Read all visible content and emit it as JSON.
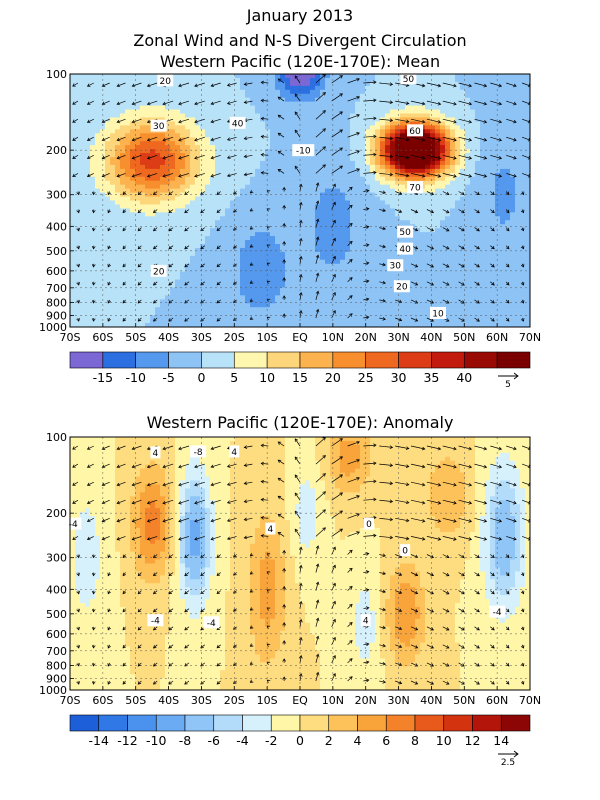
{
  "figure": {
    "title_line1": "January 2013",
    "title_line2": "Zonal Wind and N-S Divergent Circulation"
  },
  "colors": {
    "mean_scale": [
      "#7b68d4",
      "#2c6fe0",
      "#5599ee",
      "#8ec3f5",
      "#b8e2f8",
      "#fff7b0",
      "#fdd57a",
      "#fcb24e",
      "#f88f2e",
      "#ef6820",
      "#dc3d16",
      "#c21a0c",
      "#9a0a04",
      "#7a0000"
    ],
    "anom_scale": [
      "#1c5fd8",
      "#2f78e6",
      "#4b92ee",
      "#6aabf3",
      "#8fc6f7",
      "#b3dcfa",
      "#d6f1fc",
      "#fff6a8",
      "#fedd80",
      "#fdc25a",
      "#f9a43b",
      "#f4822a",
      "#e85a1c",
      "#d4330f",
      "#b4150a",
      "#8c0606"
    ]
  },
  "chart_data": [
    {
      "type": "contour",
      "title": "Western Pacific (120E-170E): Mean",
      "x": {
        "tick_labels": [
          "70S",
          "60S",
          "50S",
          "40S",
          "30S",
          "20S",
          "10S",
          "EQ",
          "10N",
          "20N",
          "30N",
          "40N",
          "50N",
          "60N",
          "70N"
        ],
        "range": [
          -70,
          70
        ]
      },
      "y": {
        "tick_labels": [
          "100",
          "200",
          "300",
          "400",
          "500",
          "600",
          "700",
          "800",
          "900",
          "1000"
        ],
        "tick_values": [
          100,
          200,
          300,
          400,
          500,
          600,
          700,
          800,
          900,
          1000
        ],
        "range": [
          100,
          1000
        ],
        "scale": "log-pressure"
      },
      "colorbar": {
        "levels": [
          -20,
          -15,
          -10,
          -5,
          0,
          5,
          10,
          15,
          20,
          25,
          30,
          35,
          40,
          45
        ],
        "tick_labels": [
          "-15",
          "-10",
          "-5",
          "0",
          "5",
          "10",
          "15",
          "20",
          "25",
          "30",
          "35",
          "40"
        ]
      },
      "features": [
        {
          "lat": 35,
          "p": 200,
          "amp": 72,
          "wx": 10,
          "wp": 0.24
        },
        {
          "lat": -45,
          "p": 220,
          "amp": 32,
          "wx": 14,
          "wp": 0.36
        },
        {
          "lat": 0,
          "p": 100,
          "amp": -21,
          "wx": 7,
          "wp": 0.22
        },
        {
          "lat": -12,
          "p": 600,
          "amp": -9,
          "wx": 9,
          "wp": 0.45
        },
        {
          "lat": 10,
          "p": 400,
          "amp": -7,
          "wx": 10,
          "wp": 0.6
        },
        {
          "lat": 62,
          "p": 300,
          "amp": -6,
          "wx": 8,
          "wp": 0.6
        }
      ],
      "contour_labels": [
        {
          "lat": -41,
          "p": 106,
          "text": "20"
        },
        {
          "lat": -43,
          "p": 160,
          "text": "30"
        },
        {
          "lat": -19,
          "p": 156,
          "text": "40"
        },
        {
          "lat": -43,
          "p": 600,
          "text": "20"
        },
        {
          "lat": 1,
          "p": 200,
          "text": "-10"
        },
        {
          "lat": 33,
          "p": 104,
          "text": "50"
        },
        {
          "lat": 35,
          "p": 167,
          "text": "60"
        },
        {
          "lat": 35,
          "p": 280,
          "text": "70"
        },
        {
          "lat": 32,
          "p": 420,
          "text": "50"
        },
        {
          "lat": 32,
          "p": 490,
          "text": "40"
        },
        {
          "lat": 29,
          "p": 570,
          "text": "30"
        },
        {
          "lat": 31,
          "p": 690,
          "text": "20"
        },
        {
          "lat": 42,
          "p": 880,
          "text": "10"
        }
      ],
      "vector_reference": {
        "label": "5"
      }
    },
    {
      "type": "contour",
      "title": "Western Pacific (120E-170E): Anomaly",
      "x": {
        "tick_labels": [
          "70S",
          "60S",
          "50S",
          "40S",
          "30S",
          "20S",
          "10S",
          "EQ",
          "10N",
          "20N",
          "30N",
          "40N",
          "50N",
          "60N",
          "70N"
        ],
        "range": [
          -70,
          70
        ]
      },
      "y": {
        "tick_labels": [
          "100",
          "200",
          "300",
          "400",
          "500",
          "600",
          "700",
          "800",
          "900",
          "1000"
        ],
        "tick_values": [
          100,
          200,
          300,
          400,
          500,
          600,
          700,
          800,
          900,
          1000
        ],
        "range": [
          100,
          1000
        ],
        "scale": "log-pressure"
      },
      "colorbar": {
        "levels": [
          -16,
          -14,
          -12,
          -10,
          -8,
          -6,
          -4,
          -2,
          0,
          2,
          4,
          6,
          8,
          10,
          12,
          14,
          16
        ],
        "tick_labels": [
          "-14",
          "-12",
          "-10",
          "-8",
          "-6",
          "-4",
          "-2",
          "0",
          "2",
          "4",
          "6",
          "8",
          "10",
          "12",
          "14"
        ]
      },
      "features": [
        {
          "lat": -45,
          "p": 220,
          "amp": 7,
          "wx": 6,
          "wp": 0.5
        },
        {
          "lat": -32,
          "p": 250,
          "amp": -9,
          "wx": 5,
          "wp": 0.6
        },
        {
          "lat": -65,
          "p": 300,
          "amp": -3,
          "wx": 6,
          "wp": 0.7
        },
        {
          "lat": -10,
          "p": 400,
          "amp": 5,
          "wx": 6,
          "wp": 0.7
        },
        {
          "lat": 15,
          "p": 120,
          "amp": 5,
          "wx": 7,
          "wp": 0.35
        },
        {
          "lat": 32,
          "p": 500,
          "amp": 6,
          "wx": 6,
          "wp": 0.45
        },
        {
          "lat": 45,
          "p": 170,
          "amp": 4,
          "wx": 7,
          "wp": 0.4
        },
        {
          "lat": 20,
          "p": 550,
          "amp": -3,
          "wx": 5,
          "wp": 0.5
        },
        {
          "lat": 62,
          "p": 250,
          "amp": -8,
          "wx": 6,
          "wp": 0.65
        },
        {
          "lat": 2,
          "p": 200,
          "amp": -3,
          "wx": 5,
          "wp": 0.5
        }
      ],
      "contour_labels": [
        {
          "lat": -44,
          "p": 115,
          "text": "4"
        },
        {
          "lat": -31,
          "p": 114,
          "text": "-8"
        },
        {
          "lat": -20,
          "p": 114,
          "text": "4"
        },
        {
          "lat": -69,
          "p": 220,
          "text": "-4"
        },
        {
          "lat": -9,
          "p": 230,
          "text": "4"
        },
        {
          "lat": 21,
          "p": 220,
          "text": "0"
        },
        {
          "lat": 32,
          "p": 280,
          "text": "0"
        },
        {
          "lat": -44,
          "p": 530,
          "text": "-4"
        },
        {
          "lat": -27,
          "p": 540,
          "text": "-4"
        },
        {
          "lat": 20,
          "p": 530,
          "text": "4"
        },
        {
          "lat": 60,
          "p": 490,
          "text": "-4"
        }
      ],
      "vector_reference": {
        "label": "2.5"
      }
    }
  ]
}
